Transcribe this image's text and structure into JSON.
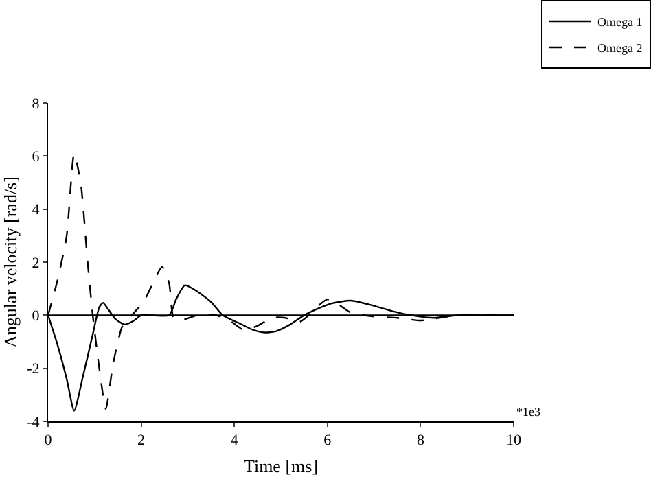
{
  "chart_data": {
    "type": "line",
    "xlabel": "Time [ms]",
    "ylabel": "Angular velocity [rad/s]",
    "annotations": [
      "*1e3"
    ],
    "xlim": [
      0,
      10
    ],
    "xticks": [
      0,
      2,
      4,
      6,
      8,
      10
    ],
    "ylim": [
      -4,
      8
    ],
    "yticks": [
      -4,
      -2,
      0,
      2,
      4,
      6,
      8
    ],
    "grid": false,
    "legend": "top right",
    "marker": "none",
    "ref_lines": [
      {
        "axis": "y",
        "value": 0,
        "color": "#000000"
      }
    ],
    "series": [
      {
        "name": "Omega 1",
        "color": "#000000",
        "line_style": "solid",
        "x": [
          0,
          0.2,
          0.4,
          0.56,
          0.75,
          0.95,
          1.1,
          1.18,
          1.3,
          1.45,
          1.65,
          1.85,
          2.0,
          2.6,
          2.75,
          2.94,
          3.2,
          3.5,
          3.75,
          4.1,
          4.4,
          4.65,
          4.9,
          5.2,
          5.5,
          5.8,
          6.1,
          6.5,
          6.9,
          7.4,
          7.8,
          8.3,
          8.8,
          9.3,
          10
        ],
        "values": [
          0,
          -1.1,
          -2.4,
          -3.6,
          -2.3,
          -0.8,
          0.3,
          0.47,
          0.2,
          -0.15,
          -0.35,
          -0.2,
          0,
          0,
          0.6,
          1.13,
          0.9,
          0.5,
          0,
          -0.3,
          -0.55,
          -0.65,
          -0.6,
          -0.35,
          0,
          0.25,
          0.45,
          0.55,
          0.4,
          0.15,
          0,
          -0.1,
          0,
          0,
          0
        ]
      },
      {
        "name": "Omega 2",
        "color": "#000000",
        "line_style": "dashed",
        "x": [
          0,
          0.2,
          0.4,
          0.56,
          0.7,
          0.85,
          0.96,
          1.1,
          1.24,
          1.4,
          1.6,
          1.85,
          2.05,
          2.25,
          2.45,
          2.6,
          2.7,
          2.9,
          3.2,
          3.6,
          3.9,
          4.2,
          4.5,
          4.8,
          5.1,
          5.4,
          5.6,
          5.8,
          6.0,
          6.2,
          6.5,
          7.0,
          7.5,
          8.0,
          8.4,
          8.8,
          10
        ],
        "values": [
          0,
          1.3,
          3.0,
          6.08,
          5.0,
          2.0,
          0,
          -2.0,
          -3.53,
          -1.8,
          -0.4,
          0.1,
          0.5,
          1.2,
          1.83,
          1.2,
          -0.1,
          -0.17,
          0,
          0,
          -0.2,
          -0.55,
          -0.4,
          -0.1,
          -0.1,
          -0.25,
          0,
          0.35,
          0.6,
          0.45,
          0.1,
          -0.05,
          -0.1,
          -0.2,
          -0.1,
          0,
          0
        ]
      }
    ]
  }
}
